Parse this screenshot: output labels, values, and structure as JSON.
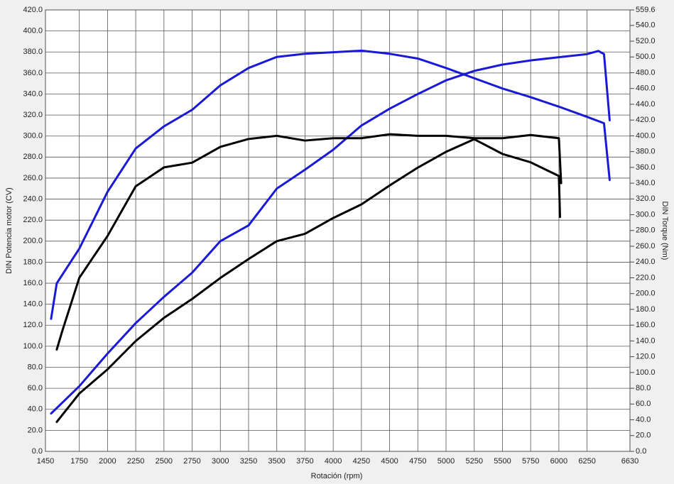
{
  "chart_data": {
    "type": "line",
    "x_label": "Rotación (rpm)",
    "y_label": "DIN Potencia motor (CV)",
    "y2_label": "DIN Torque (Nm)",
    "xlim": [
      1450,
      6630
    ],
    "xticks": [
      1450,
      1750,
      2000,
      2250,
      2500,
      2750,
      3000,
      3250,
      3500,
      3750,
      4000,
      4250,
      4500,
      4750,
      5000,
      5250,
      5500,
      5750,
      6000,
      6250,
      6630
    ],
    "ylim": [
      0,
      420
    ],
    "yticks": [
      {
        "value": 0,
        "label": "0.0"
      },
      {
        "value": 20,
        "label": "20.0"
      },
      {
        "value": 40,
        "label": "40.0"
      },
      {
        "value": 60,
        "label": "60.0"
      },
      {
        "value": 80,
        "label": "80.0"
      },
      {
        "value": 100,
        "label": "100.0"
      },
      {
        "value": 120,
        "label": "120.0"
      },
      {
        "value": 140,
        "label": "140.0"
      },
      {
        "value": 160,
        "label": "160.0"
      },
      {
        "value": 180,
        "label": "180.0"
      },
      {
        "value": 200,
        "label": "200.0"
      },
      {
        "value": 220,
        "label": "220.0"
      },
      {
        "value": 240,
        "label": "240.0"
      },
      {
        "value": 260,
        "label": "260.0"
      },
      {
        "value": 280,
        "label": "280.0"
      },
      {
        "value": 300,
        "label": "300.0"
      },
      {
        "value": 320,
        "label": "320.0"
      },
      {
        "value": 340,
        "label": "340.0"
      },
      {
        "value": 360,
        "label": "360.0"
      },
      {
        "value": 380,
        "label": "380.0"
      },
      {
        "value": 400,
        "label": "400.0"
      },
      {
        "value": 420,
        "label": "420.0"
      }
    ],
    "y2lim": [
      0,
      559.6
    ],
    "y2ticks": [
      {
        "value": 0,
        "label": "0.0"
      },
      {
        "value": 20,
        "label": "20.0"
      },
      {
        "value": 40,
        "label": "40.0"
      },
      {
        "value": 60,
        "label": "60.0"
      },
      {
        "value": 80,
        "label": "80.0"
      },
      {
        "value": 100,
        "label": "100.0"
      },
      {
        "value": 120,
        "label": "120.0"
      },
      {
        "value": 140,
        "label": "140.0"
      },
      {
        "value": 160,
        "label": "160.0"
      },
      {
        "value": 180,
        "label": "180.0"
      },
      {
        "value": 200,
        "label": "200.0"
      },
      {
        "value": 220,
        "label": "220.0"
      },
      {
        "value": 240,
        "label": "240.0"
      },
      {
        "value": 260,
        "label": "260.0"
      },
      {
        "value": 280,
        "label": "280.0"
      },
      {
        "value": 300,
        "label": "300.0"
      },
      {
        "value": 320,
        "label": "320.0"
      },
      {
        "value": 340,
        "label": "340.0"
      },
      {
        "value": 360,
        "label": "360.0"
      },
      {
        "value": 380,
        "label": "380.0"
      },
      {
        "value": 400,
        "label": "400.0"
      },
      {
        "value": 420,
        "label": "420.0"
      },
      {
        "value": 440,
        "label": "440.0"
      },
      {
        "value": 460,
        "label": "460.0"
      },
      {
        "value": 480,
        "label": "480.0"
      },
      {
        "value": 500,
        "label": "500.0"
      },
      {
        "value": 520,
        "label": "520.0"
      },
      {
        "value": 540,
        "label": "540.0"
      },
      559.6
    ],
    "grid": true,
    "series": [
      {
        "color": "#1a1ad6",
        "axis": "y2",
        "x": [
          1500,
          1550,
          1750,
          2000,
          2250,
          2500,
          2750,
          3000,
          3250,
          3500,
          3750,
          4000,
          4250,
          4500,
          4750,
          5000,
          5250,
          5500,
          5750,
          6000,
          6250,
          6400,
          6450
        ],
        "values": [
          168,
          213,
          257,
          329,
          384,
          412,
          433,
          464,
          486,
          500,
          504,
          506,
          508,
          504,
          498,
          486,
          473,
          460,
          449,
          437,
          424,
          416,
          344
        ]
      },
      {
        "color": "#1a1ad6",
        "x": [
          1500,
          1750,
          2000,
          2250,
          2500,
          2750,
          3000,
          3250,
          3500,
          3750,
          4000,
          4250,
          4500,
          4750,
          5000,
          5250,
          5500,
          5750,
          6000,
          6250,
          6350,
          6400,
          6450
        ],
        "values": [
          36,
          62,
          93,
          122,
          147,
          170,
          200,
          215,
          250,
          268,
          287,
          310,
          326,
          340,
          353,
          362,
          368,
          372,
          375,
          378,
          381,
          378,
          315
        ]
      },
      {
        "color": "#000000",
        "axis": "y2",
        "x": [
          1550,
          1600,
          1750,
          2000,
          2250,
          2500,
          2750,
          3000,
          3250,
          3500,
          3750,
          4000,
          4250,
          4500,
          4750,
          5000,
          5250,
          5500,
          5750,
          6000,
          6020
        ],
        "values": [
          129,
          153,
          220,
          273,
          336,
          360,
          366,
          386,
          396,
          400,
          394,
          397,
          397,
          402,
          400,
          400,
          397,
          397,
          401,
          397,
          340
        ]
      },
      {
        "color": "#000000",
        "x": [
          1550,
          1750,
          2000,
          2250,
          2500,
          2750,
          3000,
          3250,
          3500,
          3750,
          4000,
          4250,
          4500,
          4750,
          5000,
          5250,
          5500,
          5750,
          6000,
          6010
        ],
        "values": [
          28,
          55,
          78,
          105,
          127,
          145,
          165,
          183,
          200,
          207,
          222,
          235,
          253,
          270,
          285,
          297,
          283,
          275,
          262,
          223
        ]
      }
    ]
  }
}
